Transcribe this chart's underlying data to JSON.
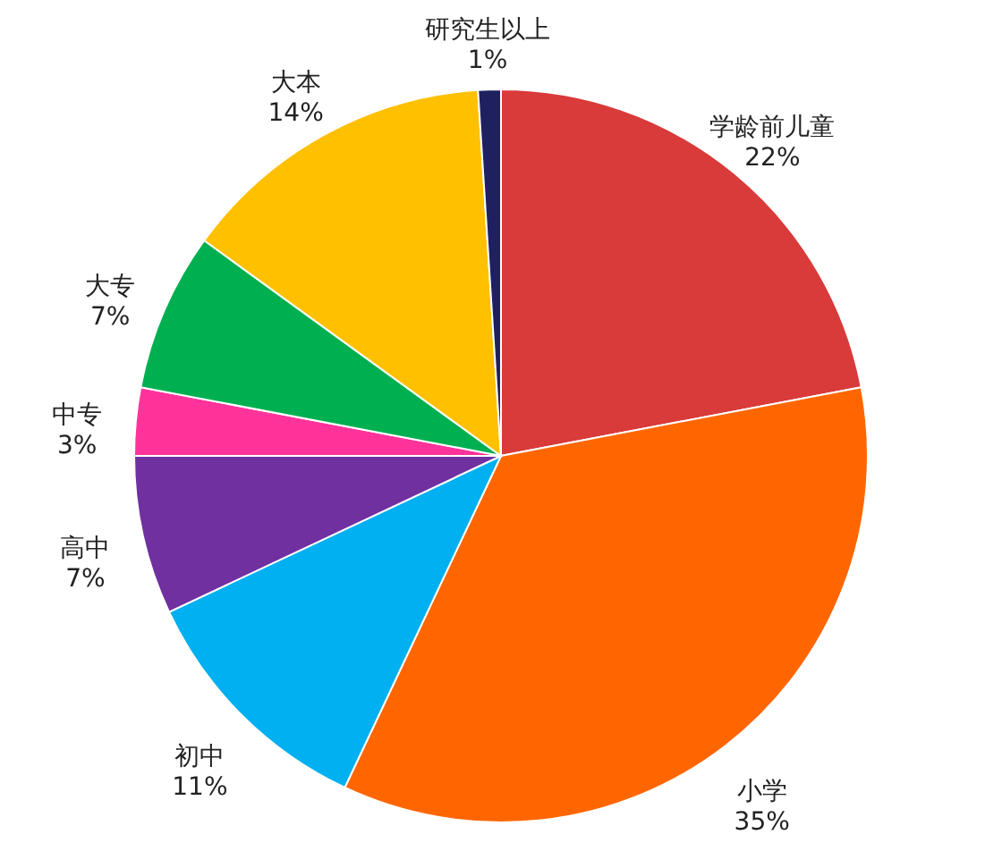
{
  "chart_data": {
    "type": "pie",
    "categories": [
      "学龄前儿童",
      "小学",
      "初中",
      "高中",
      "中专",
      "大专",
      "大本",
      "研究生以上"
    ],
    "values": [
      22,
      35,
      11,
      7,
      3,
      7,
      14,
      1
    ],
    "value_labels": [
      "22%",
      "35%",
      "11%",
      "7%",
      "3%",
      "7%",
      "14%",
      "1%"
    ],
    "colors": [
      "#d93a3a",
      "#ff6600",
      "#00b0f0",
      "#7030a0",
      "#ff3399",
      "#00b050",
      "#ffc000",
      "#1f2060"
    ]
  }
}
